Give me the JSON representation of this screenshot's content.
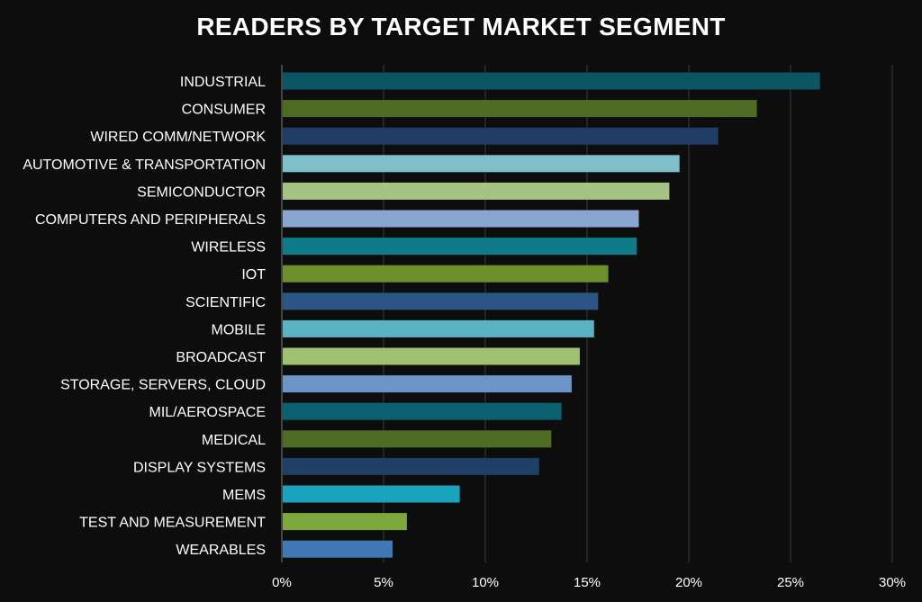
{
  "chart_data": {
    "type": "bar",
    "orientation": "horizontal",
    "title": "READERS BY TARGET MARKET SEGMENT",
    "xlabel": "",
    "ylabel": "",
    "xlim": [
      0,
      30
    ],
    "x_ticks": [
      "0%",
      "5%",
      "10%",
      "15%",
      "20%",
      "25%",
      "30%"
    ],
    "grid": "vertical",
    "categories": [
      "INDUSTRIAL",
      "CONSUMER",
      "WIRED COMM/NETWORK",
      "AUTOMOTIVE & TRANSPORTATION",
      "SEMICONDUCTOR",
      "COMPUTERS AND PERIPHERALS",
      "WIRELESS",
      "IOT",
      "SCIENTIFIC",
      "MOBILE",
      "BROADCAST",
      "STORAGE, SERVERS, CLOUD",
      "MIL/AEROSPACE",
      "MEDICAL",
      "DISPLAY SYSTEMS",
      "MEMS",
      "TEST AND MEASUREMENT",
      "WEARABLES"
    ],
    "values": [
      26.4,
      23.3,
      21.4,
      19.5,
      19.0,
      17.5,
      17.4,
      16.0,
      15.5,
      15.3,
      14.6,
      14.2,
      13.7,
      13.2,
      12.6,
      8.7,
      6.1,
      5.4
    ],
    "colors": [
      "#0b5565",
      "#4e6b22",
      "#1f3d63",
      "#7fbfcc",
      "#a6c285",
      "#8aa5cf",
      "#0e7a8a",
      "#6b8f2a",
      "#2a5585",
      "#5ab3c4",
      "#9dc071",
      "#6b95c7",
      "#0b6070",
      "#4f6b24",
      "#1f3f66",
      "#19a3bd",
      "#7fa83c",
      "#3f78b5"
    ]
  }
}
